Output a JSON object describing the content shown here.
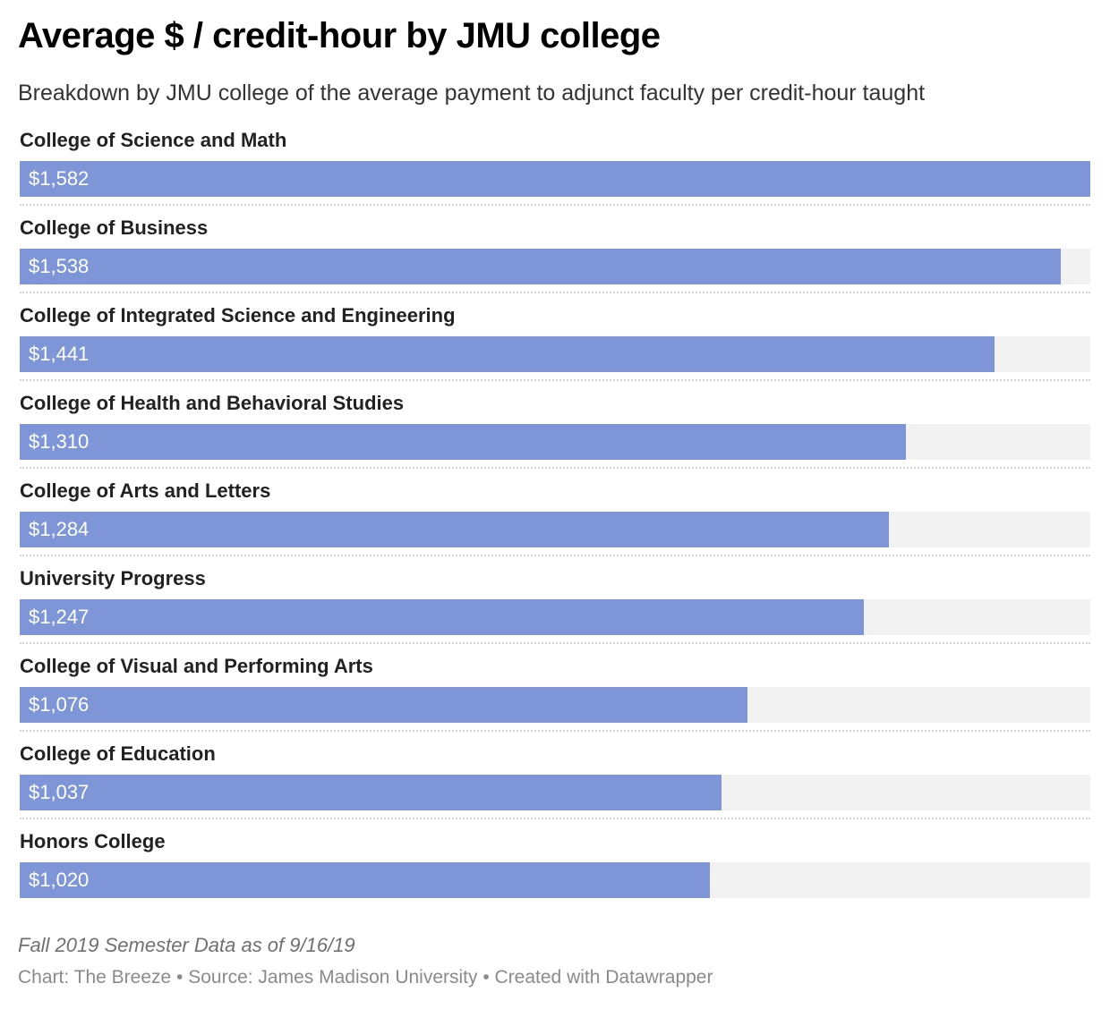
{
  "title": "Average $ / credit-hour by JMU college",
  "subtitle": "Breakdown by JMU college of the average payment to adjunct faculty per credit-hour taught",
  "footer": {
    "note": "Fall 2019 Semester Data as of 9/16/19",
    "credits": "Chart: The Breeze • Source: James Madison University • Created with Datawrapper"
  },
  "colors": {
    "bar": "#7e96d7",
    "track": "#f2f2f2"
  },
  "chart_data": {
    "type": "bar",
    "orientation": "horizontal",
    "title": "Average $ / credit-hour by JMU college",
    "categories": [
      "College of Science and Math",
      "College of Business",
      "College of Integrated Science and Engineering",
      "College of Health and Behavioral Studies",
      "College of Arts and Letters",
      "University Progress",
      "College of Visual and Performing Arts",
      "College of Education",
      "Honors College"
    ],
    "values": [
      1582,
      1538,
      1441,
      1310,
      1284,
      1247,
      1076,
      1037,
      1020
    ],
    "value_labels": [
      "$1,582",
      "$1,538",
      "$1,441",
      "$1,310",
      "$1,284",
      "$1,247",
      "$1,076",
      "$1,037",
      "$1,020"
    ],
    "xlim": [
      0,
      1582
    ],
    "grid": false,
    "legend": "none"
  }
}
